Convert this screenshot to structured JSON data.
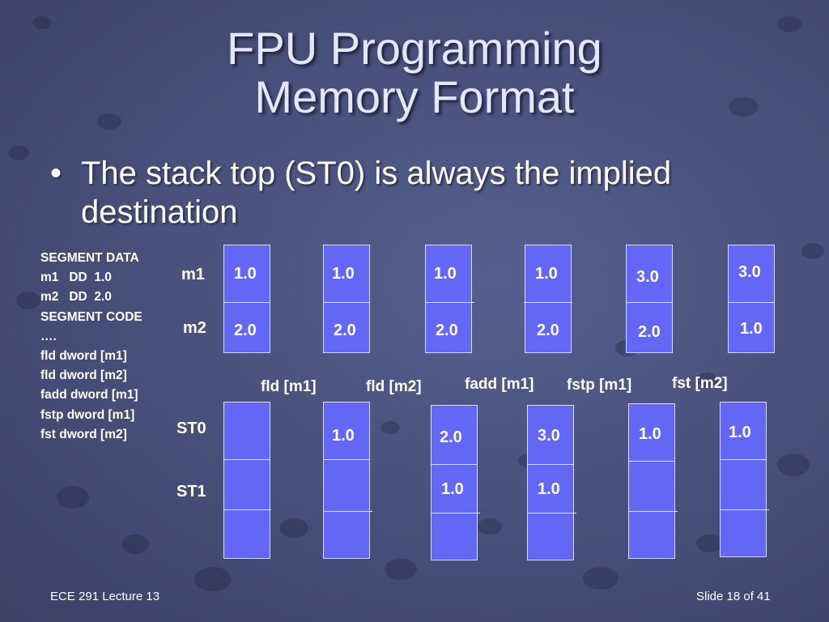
{
  "slide": {
    "title_line1": "FPU Programming",
    "title_line2": "Memory Format",
    "bullet_marker": "•",
    "bullet_text": "The stack top (ST0) is always the implied destination"
  },
  "code": {
    "lines": [
      "SEGMENT DATA",
      "m1   DD  1.0",
      "m2   DD  2.0",
      "SEGMENT CODE",
      "….",
      "fld dword [m1]",
      "fld dword [m2]",
      "fadd dword [m1]",
      "fstp dword [m1]",
      "fst dword [m2]"
    ]
  },
  "labels": {
    "m1": "m1",
    "m2": "m2",
    "st0": "ST0",
    "st1": "ST1"
  },
  "steps": {
    "instructions": [
      "fld [m1]",
      "fld [m2]",
      "fadd [m1]",
      "fstp [m1]",
      "fst [m2]"
    ],
    "memory": [
      {
        "m1": "1.0",
        "m2": "2.0"
      },
      {
        "m1": "1.0",
        "m2": "2.0"
      },
      {
        "m1": "1.0",
        "m2": "2.0"
      },
      {
        "m1": "1.0",
        "m2": "2.0"
      },
      {
        "m1": "3.0",
        "m2": "2.0"
      },
      {
        "m1": "3.0",
        "m2": "1.0"
      }
    ],
    "stack": [
      {
        "st0": "",
        "st1": ""
      },
      {
        "st0": "1.0",
        "st1": ""
      },
      {
        "st0": "2.0",
        "st1": "1.0"
      },
      {
        "st0": "3.0",
        "st1": "1.0"
      },
      {
        "st0": "1.0",
        "st1": ""
      },
      {
        "st0": "1.0",
        "st1": ""
      }
    ]
  },
  "footer": {
    "left": "ECE 291 Lecture 13",
    "right": "Slide 18 of 41"
  }
}
